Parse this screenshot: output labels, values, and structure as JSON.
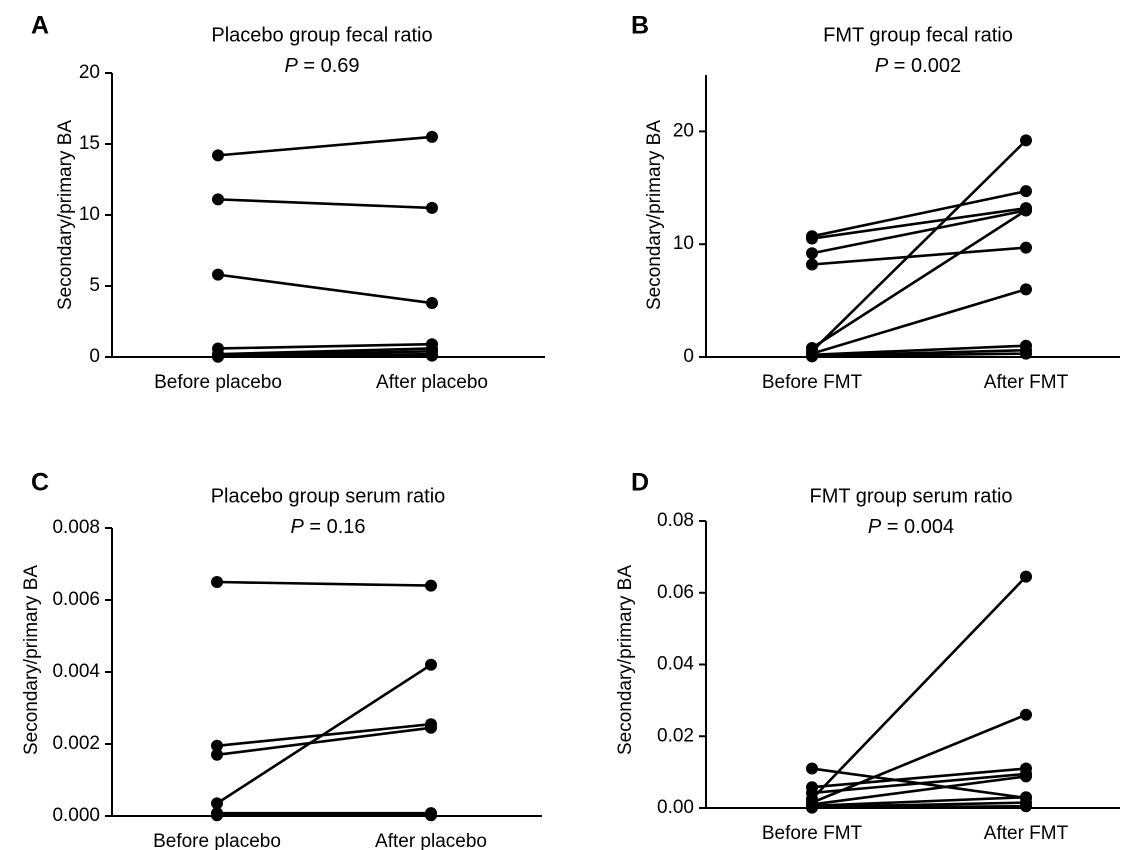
{
  "chart_data": [
    {
      "type": "line",
      "panel": "A",
      "title": "Placebo group fecal ratio",
      "p_label": "P",
      "p_value": " = 0.69",
      "ylabel": "Secondary/primary BA",
      "categories": [
        "Before placebo",
        "After placebo"
      ],
      "ylim": [
        0,
        20
      ],
      "yticks": [
        0,
        5,
        10,
        15,
        20
      ],
      "ytick_labels": [
        "0",
        "5",
        "10",
        "15",
        "20"
      ],
      "series": [
        {
          "values": [
            14.2,
            15.5
          ]
        },
        {
          "values": [
            11.1,
            10.5
          ]
        },
        {
          "values": [
            5.8,
            3.8
          ]
        },
        {
          "values": [
            0.6,
            0.9
          ]
        },
        {
          "values": [
            0.2,
            0.6
          ]
        },
        {
          "values": [
            0.1,
            0.4
          ]
        },
        {
          "values": [
            0.05,
            0.2
          ]
        },
        {
          "values": [
            0.02,
            0.1
          ]
        }
      ]
    },
    {
      "type": "line",
      "panel": "B",
      "title": "FMT group fecal ratio",
      "p_label": "P",
      "p_value": " = 0.002",
      "ylabel": "Secondary/primary BA",
      "categories": [
        "Before FMT",
        "After FMT"
      ],
      "ylim": [
        0,
        25
      ],
      "yticks": [
        0,
        10,
        20
      ],
      "ytick_labels": [
        "0",
        "10",
        "20"
      ],
      "series": [
        {
          "values": [
            10.7,
            14.7
          ]
        },
        {
          "values": [
            10.5,
            13.2
          ]
        },
        {
          "values": [
            9.2,
            13.0
          ]
        },
        {
          "values": [
            8.2,
            9.7
          ]
        },
        {
          "values": [
            0.8,
            13.0
          ]
        },
        {
          "values": [
            0.5,
            19.2
          ]
        },
        {
          "values": [
            0.3,
            6.0
          ]
        },
        {
          "values": [
            0.2,
            1.0
          ]
        },
        {
          "values": [
            0.1,
            0.6
          ]
        },
        {
          "values": [
            0.05,
            0.3
          ]
        }
      ]
    },
    {
      "type": "line",
      "panel": "C",
      "title": "Placebo group serum ratio",
      "p_label": "P",
      "p_value": " = 0.16",
      "ylabel": "Secondary/primary BA",
      "categories": [
        "Before placebo",
        "After placebo"
      ],
      "ylim": [
        0,
        0.008
      ],
      "yticks": [
        0,
        0.002,
        0.004,
        0.006,
        0.008
      ],
      "ytick_labels": [
        "0.000",
        "0.002",
        "0.004",
        "0.006",
        "0.008"
      ],
      "series": [
        {
          "values": [
            0.0065,
            0.0064
          ]
        },
        {
          "values": [
            0.00195,
            0.00255
          ]
        },
        {
          "values": [
            0.0017,
            0.00245
          ]
        },
        {
          "values": [
            0.00035,
            0.0042
          ]
        },
        {
          "values": [
            8e-05,
            8e-05
          ]
        },
        {
          "values": [
            5e-05,
            5e-05
          ]
        },
        {
          "values": [
            2e-05,
            2e-05
          ]
        }
      ]
    },
    {
      "type": "line",
      "panel": "D",
      "title": "FMT group serum ratio",
      "p_label": "P",
      "p_value": " = 0.004",
      "ylabel": "Secondary/primary BA",
      "categories": [
        "Before FMT",
        "After FMT"
      ],
      "ylim": [
        0,
        0.08
      ],
      "yticks": [
        0,
        0.02,
        0.04,
        0.06,
        0.08
      ],
      "ytick_labels": [
        "0.00",
        "0.02",
        "0.04",
        "0.06",
        "0.08"
      ],
      "series": [
        {
          "values": [
            0.011,
            0.0028
          ]
        },
        {
          "values": [
            0.0058,
            0.011
          ]
        },
        {
          "values": [
            0.0042,
            0.0095
          ]
        },
        {
          "values": [
            0.0025,
            0.0645
          ]
        },
        {
          "values": [
            0.0015,
            0.026
          ]
        },
        {
          "values": [
            0.001,
            0.0088
          ]
        },
        {
          "values": [
            0.0006,
            0.003
          ]
        },
        {
          "values": [
            0.0003,
            0.0015
          ]
        },
        {
          "values": [
            0.0001,
            0.0005
          ]
        }
      ]
    }
  ]
}
